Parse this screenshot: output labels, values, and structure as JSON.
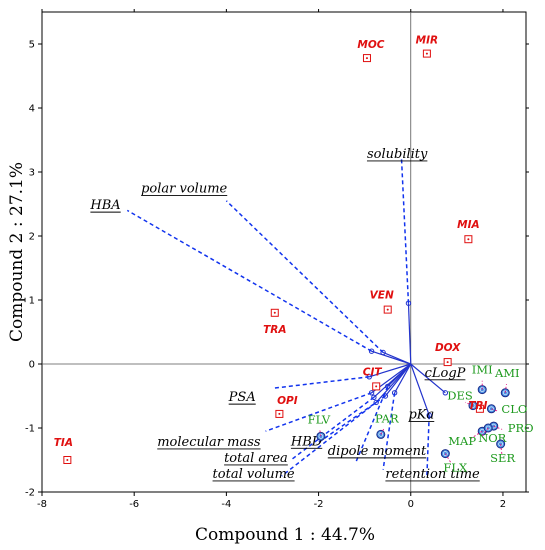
{
  "chart_data": {
    "type": "scatter",
    "subtype": "pca-biplot",
    "xlabel": "Compound 1 : 44.7%",
    "ylabel": "Compound 2 : 27.1%",
    "xlim": [
      -8,
      2.5
    ],
    "ylim": [
      -2,
      5.5
    ],
    "xticks": [
      -8,
      -6,
      -4,
      -2,
      0,
      2
    ],
    "yticks": [
      -2,
      -1,
      0,
      1,
      2,
      3,
      4,
      5
    ],
    "grid": false,
    "colors": {
      "vector": "#2233cc",
      "red_group": "#e01010",
      "green_group": "#1f9a1f",
      "green_marker": "#4a90e2",
      "leader": "#e01080"
    },
    "red_points": [
      {
        "label": "MOC",
        "x": -0.95,
        "y": 4.78
      },
      {
        "label": "MIR",
        "x": 0.35,
        "y": 4.85
      },
      {
        "label": "MIA",
        "x": 1.25,
        "y": 1.95
      },
      {
        "label": "VEN",
        "x": -0.5,
        "y": 0.85
      },
      {
        "label": "TRA",
        "x": -2.95,
        "y": 0.8
      },
      {
        "label": "DOX",
        "x": 0.8,
        "y": 0.03
      },
      {
        "label": "OPI",
        "x": -2.85,
        "y": -0.78
      },
      {
        "label": "CIT",
        "x": -0.75,
        "y": -0.35
      },
      {
        "label": "TRI",
        "x": 1.5,
        "y": -0.7
      },
      {
        "label": "TIA",
        "x": -7.45,
        "y": -1.5
      }
    ],
    "green_points": [
      {
        "label": "IMI",
        "x": 1.55,
        "y": -0.4
      },
      {
        "label": "AMI",
        "x": 2.05,
        "y": -0.45
      },
      {
        "label": "DES",
        "x": 1.35,
        "y": -0.65
      },
      {
        "label": "CLO",
        "x": 1.75,
        "y": -0.7
      },
      {
        "label": "PRO",
        "x": 1.8,
        "y": -0.97
      },
      {
        "label": "MAP",
        "x": 1.55,
        "y": -1.05
      },
      {
        "label": "NOR",
        "x": 1.68,
        "y": -1.0
      },
      {
        "label": "SER",
        "x": 1.95,
        "y": -1.25
      },
      {
        "label": "FLX",
        "x": 0.75,
        "y": -1.4
      },
      {
        "label": "FLV",
        "x": -1.95,
        "y": -1.13
      },
      {
        "label": "PAR",
        "x": -0.65,
        "y": -1.1
      }
    ],
    "loadings": [
      {
        "name": "solubility",
        "solid": [
          [
            0,
            0
          ],
          [
            -0.05,
            0.95
          ]
        ],
        "dashed": [
          [
            -0.05,
            0.95
          ],
          [
            -0.2,
            3.2
          ]
        ]
      },
      {
        "name": "HBA",
        "solid": [
          [
            0,
            0
          ],
          [
            -0.85,
            0.2
          ]
        ],
        "dashed": [
          [
            -0.85,
            0.2
          ],
          [
            -6.15,
            2.4
          ]
        ]
      },
      {
        "name": "polar volume",
        "solid": [
          [
            0,
            0
          ],
          [
            -0.6,
            0.18
          ]
        ],
        "dashed": [
          [
            -0.6,
            0.18
          ],
          [
            -4.0,
            2.55
          ]
        ]
      },
      {
        "name": "cLogP",
        "solid": [
          [
            0,
            0
          ],
          [
            0.75,
            -0.45
          ]
        ],
        "dashed": null
      },
      {
        "name": "pKa",
        "solid": [
          [
            0,
            0
          ],
          [
            0.4,
            -0.8
          ]
        ],
        "dashed": [
          [
            0.4,
            -0.8
          ],
          [
            0.35,
            -1.75
          ]
        ]
      },
      {
        "name": "PSA",
        "solid": [
          [
            0,
            0
          ],
          [
            -0.9,
            -0.2
          ]
        ],
        "dashed": [
          [
            -0.9,
            -0.2
          ],
          [
            -3.0,
            -0.38
          ]
        ]
      },
      {
        "name": "molecular mass",
        "solid": [
          [
            0,
            0
          ],
          [
            -0.85,
            -0.45
          ]
        ],
        "dashed": [
          [
            -0.85,
            -0.45
          ],
          [
            -3.15,
            -1.05
          ]
        ]
      },
      {
        "name": "total area",
        "solid": [
          [
            0,
            0
          ],
          [
            -0.8,
            -0.52
          ]
        ],
        "dashed": [
          [
            -0.8,
            -0.52
          ],
          [
            -2.6,
            -1.5
          ]
        ]
      },
      {
        "name": "total volume",
        "solid": [
          [
            0,
            0
          ],
          [
            -0.75,
            -0.6
          ]
        ],
        "dashed": [
          [
            -0.75,
            -0.6
          ],
          [
            -2.8,
            -1.75
          ]
        ]
      },
      {
        "name": "HBD",
        "solid": [
          [
            0,
            0
          ],
          [
            -0.55,
            -0.5
          ]
        ],
        "dashed": [
          [
            -0.55,
            -0.5
          ],
          [
            -2.05,
            -1.25
          ]
        ]
      },
      {
        "name": "dipole moment",
        "solid": [
          [
            0,
            0
          ],
          [
            -0.5,
            -0.35
          ]
        ],
        "dashed": [
          [
            -0.5,
            -0.35
          ],
          [
            -1.2,
            -1.55
          ]
        ]
      },
      {
        "name": "retention time",
        "solid": [
          [
            0,
            0
          ],
          [
            -0.35,
            -0.45
          ]
        ],
        "dashed": [
          [
            -0.35,
            -0.45
          ],
          [
            -0.6,
            -1.65
          ]
        ]
      }
    ],
    "variable_labels": [
      {
        "name": "solubility",
        "x": -0.95,
        "y": 3.22
      },
      {
        "name": "HBA",
        "x": -6.95,
        "y": 2.42
      },
      {
        "name": "polar volume",
        "x": -5.85,
        "y": 2.68
      },
      {
        "name": "cLogP",
        "x": 0.3,
        "y": -0.2
      },
      {
        "name": "pKa",
        "x": -0.05,
        "y": -0.85
      },
      {
        "name": "PSA",
        "x": -3.95,
        "y": -0.58
      },
      {
        "name": "molecular mass",
        "x": -5.5,
        "y": -1.28
      },
      {
        "name": "total area",
        "x": -4.05,
        "y": -1.53
      },
      {
        "name": "total volume",
        "x": -4.3,
        "y": -1.78
      },
      {
        "name": "HBD",
        "x": -2.6,
        "y": -1.27
      },
      {
        "name": "dipole moment",
        "x": -1.8,
        "y": -1.42
      },
      {
        "name": "retention time",
        "x": -0.55,
        "y": -1.78
      }
    ]
  }
}
